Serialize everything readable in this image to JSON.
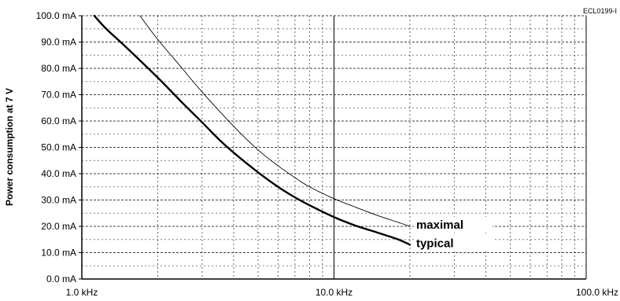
{
  "chart_data": {
    "type": "line",
    "title": "",
    "figure_code": "ECL0199-I",
    "xlabel": "",
    "ylabel": "Power consumption at 7 V",
    "x_scale": "log",
    "xlim": [
      1.0,
      100.0
    ],
    "ylim": [
      0.0,
      100.0
    ],
    "grid": true,
    "x_ticks": [
      {
        "value": 1.0,
        "label": "1.0 kHz"
      },
      {
        "value": 10.0,
        "label": "10.0 kHz"
      },
      {
        "value": 100.0,
        "label": "100.0 kHz"
      }
    ],
    "y_ticks": [
      {
        "value": 0,
        "label": "0.0 mA"
      },
      {
        "value": 10,
        "label": "10.0 mA"
      },
      {
        "value": 20,
        "label": "20.0 mA"
      },
      {
        "value": 30,
        "label": "30.0 mA"
      },
      {
        "value": 40,
        "label": "40.0 mA"
      },
      {
        "value": 50,
        "label": "50.0 mA"
      },
      {
        "value": 60,
        "label": "60.0 mA"
      },
      {
        "value": 70,
        "label": "70.0 mA"
      },
      {
        "value": 80,
        "label": "80.0 mA"
      },
      {
        "value": 90,
        "label": "90.0 mA"
      },
      {
        "value": 100,
        "label": "100.0 mA"
      }
    ],
    "series": [
      {
        "name": "typical",
        "style": "thick-solid",
        "color": "#000000",
        "x": [
          1.12,
          1.25,
          1.5,
          2.0,
          2.5,
          3.0,
          3.5,
          4.0,
          5.0,
          6.0,
          7.0,
          8.0,
          10.0,
          12.0,
          15.0,
          18.0,
          20.0
        ],
        "y": [
          100,
          95,
          88,
          76.5,
          67,
          59.5,
          53,
          48,
          40.5,
          35,
          31,
          28,
          23.5,
          20.5,
          17.5,
          15,
          13
        ]
      },
      {
        "name": "maximal",
        "style": "thin-solid",
        "color": "#000000",
        "x": [
          1.7,
          2.0,
          2.5,
          3.0,
          4.0,
          5.0,
          6.0,
          7.0,
          8.0,
          10.0,
          12.0,
          15.0,
          18.0,
          20.0
        ],
        "y": [
          100,
          91,
          80,
          71,
          58,
          49,
          43,
          38.5,
          35,
          30.5,
          27.5,
          24,
          21.5,
          20
        ]
      }
    ]
  }
}
